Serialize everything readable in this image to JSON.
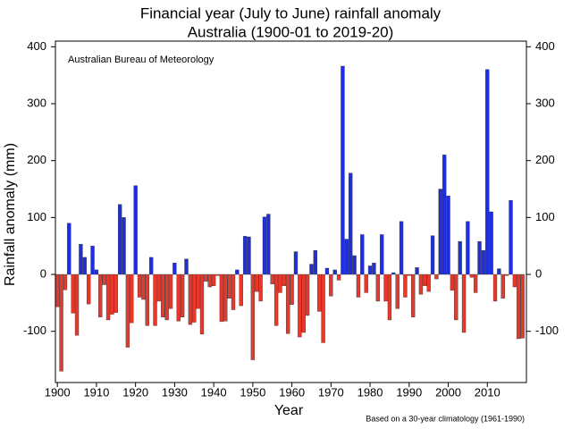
{
  "chart_data": {
    "type": "bar",
    "title": [
      "Financial year (July to June) rainfall anomaly",
      "Australia (1900-01 to 2019-20)"
    ],
    "source": "Australian Bureau of Meteorology",
    "note": "Based on a 30-year climatology (1961-1990)",
    "xlabel": "Year",
    "ylabel": "Rainfall anomaly (mm)",
    "positive_color": "#1f2fe0",
    "negative_color": "#e8382c",
    "xlim": [
      1899.5,
      2020
    ],
    "xticks": [
      1900,
      1910,
      1920,
      1930,
      1940,
      1950,
      1960,
      1970,
      1980,
      1990,
      2000,
      2010
    ],
    "ylim": [
      -190,
      410
    ],
    "yticks": [
      -100,
      0,
      100,
      200,
      300,
      400
    ],
    "y2ticks": true,
    "x": [
      1900,
      1901,
      1902,
      1903,
      1904,
      1905,
      1906,
      1907,
      1908,
      1909,
      1910,
      1911,
      1912,
      1913,
      1914,
      1915,
      1916,
      1917,
      1918,
      1919,
      1920,
      1921,
      1922,
      1923,
      1924,
      1925,
      1926,
      1927,
      1928,
      1929,
      1930,
      1931,
      1932,
      1933,
      1934,
      1935,
      1936,
      1937,
      1938,
      1939,
      1940,
      1941,
      1942,
      1943,
      1944,
      1945,
      1946,
      1947,
      1948,
      1949,
      1950,
      1951,
      1952,
      1953,
      1954,
      1955,
      1956,
      1957,
      1958,
      1959,
      1960,
      1961,
      1962,
      1963,
      1964,
      1965,
      1966,
      1967,
      1968,
      1969,
      1970,
      1971,
      1972,
      1973,
      1974,
      1975,
      1976,
      1977,
      1978,
      1979,
      1980,
      1981,
      1982,
      1983,
      1984,
      1985,
      1986,
      1987,
      1988,
      1989,
      1990,
      1991,
      1992,
      1993,
      1994,
      1995,
      1996,
      1997,
      1998,
      1999,
      2000,
      2001,
      2002,
      2003,
      2004,
      2005,
      2006,
      2007,
      2008,
      2009,
      2010,
      2011,
      2012,
      2013,
      2014,
      2015,
      2016,
      2017,
      2018,
      2019
    ],
    "values": [
      -57,
      -170,
      -27,
      90,
      -68,
      -107,
      53,
      30,
      -52,
      50,
      8,
      -75,
      -18,
      -80,
      -70,
      -67,
      123,
      100,
      -128,
      -85,
      156,
      -40,
      -44,
      -90,
      30,
      -90,
      -47,
      -75,
      -80,
      -60,
      20,
      -82,
      -75,
      27,
      -88,
      -84,
      -60,
      -105,
      -12,
      -22,
      -20,
      -2,
      -83,
      -82,
      -42,
      -62,
      8,
      -55,
      67,
      66,
      -150,
      -30,
      -47,
      101,
      106,
      -17,
      -90,
      -32,
      -20,
      -104,
      -53,
      40,
      -110,
      -102,
      -72,
      18,
      42,
      -65,
      -120,
      11,
      -38,
      8,
      -10,
      366,
      62,
      178,
      33,
      -40,
      70,
      -32,
      15,
      20,
      -47,
      70,
      -47,
      -80,
      3,
      -60,
      93,
      -40,
      -2,
      -75,
      12,
      -35,
      -20,
      -30,
      68,
      -8,
      150,
      210,
      138,
      -28,
      -80,
      58,
      -102,
      93,
      -5,
      -32,
      58,
      42,
      360,
      110,
      -47,
      10,
      -42,
      -2,
      130,
      -22,
      -113,
      -112
    ]
  }
}
